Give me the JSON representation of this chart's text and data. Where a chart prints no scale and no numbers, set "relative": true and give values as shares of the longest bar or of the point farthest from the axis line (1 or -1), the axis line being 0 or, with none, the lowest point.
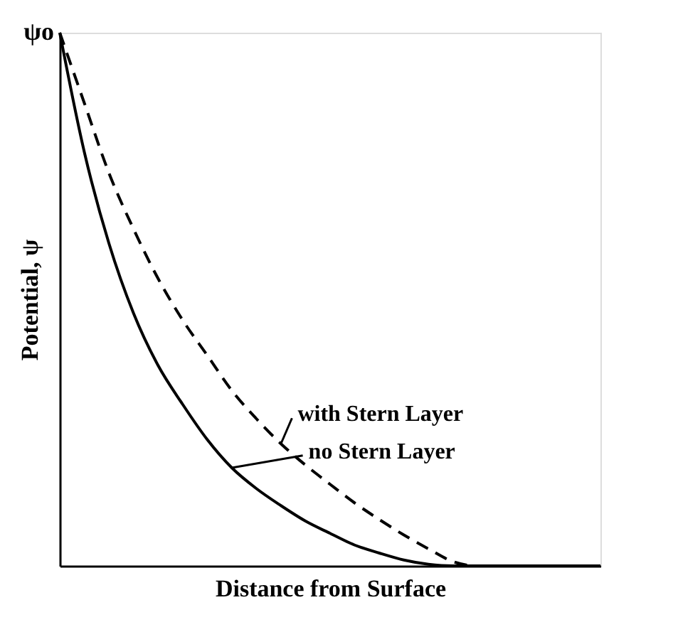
{
  "chart_data": {
    "type": "line",
    "relative": true,
    "xlabel": "Distance from Surface",
    "ylabel": "Potential, ψ",
    "annotations": [
      "ψo"
    ],
    "categories": [
      null,
      null,
      null,
      null,
      null,
      null,
      null,
      null,
      null,
      null,
      null,
      null,
      null,
      null,
      null,
      null,
      null,
      null,
      null,
      null,
      null,
      null,
      null
    ],
    "series": [
      {
        "name": "no Stern Layer",
        "color": "#000000",
        "line_style": "solid",
        "values": [
          1,
          0.776,
          0.605,
          0.474,
          0.376,
          0.303,
          0.237,
          0.184,
          0.145,
          0.113,
          0.084,
          0.061,
          0.039,
          0.024,
          0.011,
          0.003,
          0,
          0,
          0,
          0,
          0,
          0,
          0
        ]
      },
      {
        "name": "with Stern Layer",
        "color": "#000000",
        "line_style": "dashed",
        "values": [
          1,
          0.868,
          0.737,
          0.632,
          0.539,
          0.461,
          0.395,
          0.329,
          0.276,
          0.229,
          0.189,
          0.153,
          0.118,
          0.087,
          0.058,
          0.032,
          0.008,
          0,
          0,
          0,
          0,
          0,
          0
        ]
      }
    ],
    "grid": false,
    "marker": "none"
  }
}
